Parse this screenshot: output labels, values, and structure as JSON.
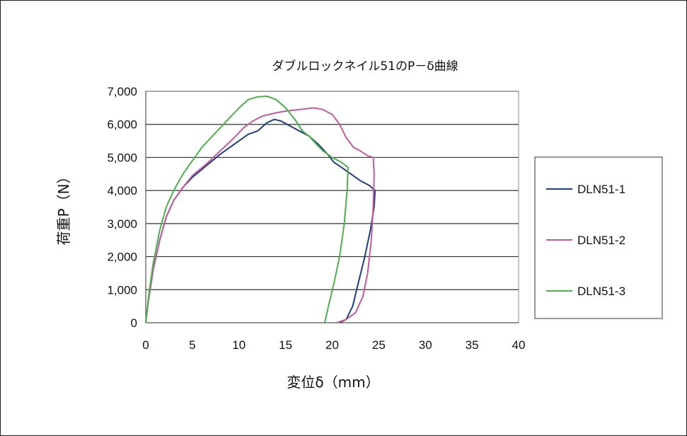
{
  "chart_data": {
    "type": "line",
    "title": "ダブルロックネイル51のP－δ曲線",
    "xlabel": "変位δ（mm）",
    "ylabel": "荷重P（N）",
    "xlim": [
      0,
      40
    ],
    "ylim": [
      0,
      7000
    ],
    "x_ticks": [
      0,
      5,
      10,
      15,
      20,
      25,
      30,
      35,
      40
    ],
    "y_ticks": [
      0,
      1000,
      2000,
      3000,
      4000,
      5000,
      6000,
      7000
    ],
    "y_tick_labels": [
      "0",
      "1,000",
      "2,000",
      "3,000",
      "4,000",
      "5,000",
      "6,000",
      "7,000"
    ],
    "grid": "horizontal",
    "legend_position": "right",
    "series": [
      {
        "name": "DLN51-1",
        "color": "#1f3f7a",
        "points": [
          [
            0,
            0
          ],
          [
            0.3,
            700
          ],
          [
            0.8,
            1600
          ],
          [
            1.5,
            2500
          ],
          [
            2.2,
            3200
          ],
          [
            3,
            3700
          ],
          [
            4,
            4100
          ],
          [
            5,
            4400
          ],
          [
            6.5,
            4750
          ],
          [
            8,
            5100
          ],
          [
            9.5,
            5400
          ],
          [
            11,
            5700
          ],
          [
            12,
            5800
          ],
          [
            13,
            6050
          ],
          [
            13.8,
            6150
          ],
          [
            14.5,
            6100
          ],
          [
            15.5,
            5950
          ],
          [
            16.5,
            5800
          ],
          [
            17.5,
            5650
          ],
          [
            18.5,
            5400
          ],
          [
            19.5,
            5100
          ],
          [
            20.2,
            4850
          ],
          [
            21,
            4700
          ],
          [
            22,
            4500
          ],
          [
            23,
            4300
          ],
          [
            24,
            4150
          ],
          [
            24.6,
            4000
          ],
          [
            24.5,
            3500
          ],
          [
            24.1,
            2800
          ],
          [
            23.5,
            2000
          ],
          [
            22.8,
            1200
          ],
          [
            22.2,
            500
          ],
          [
            21.5,
            100
          ],
          [
            20.8,
            0
          ]
        ]
      },
      {
        "name": "DLN51-2",
        "color": "#c05a9e",
        "points": [
          [
            0,
            0
          ],
          [
            0.3,
            700
          ],
          [
            0.8,
            1600
          ],
          [
            1.5,
            2500
          ],
          [
            2.2,
            3200
          ],
          [
            3,
            3700
          ],
          [
            4,
            4100
          ],
          [
            5,
            4450
          ],
          [
            6.5,
            4800
          ],
          [
            8,
            5200
          ],
          [
            9.5,
            5600
          ],
          [
            10.5,
            5900
          ],
          [
            11.5,
            6100
          ],
          [
            12.5,
            6250
          ],
          [
            14,
            6350
          ],
          [
            15,
            6400
          ],
          [
            16.5,
            6450
          ],
          [
            18,
            6500
          ],
          [
            19,
            6450
          ],
          [
            20,
            6300
          ],
          [
            20.8,
            6000
          ],
          [
            21.5,
            5600
          ],
          [
            22.3,
            5300
          ],
          [
            23,
            5200
          ],
          [
            23.8,
            5050
          ],
          [
            24.4,
            5000
          ],
          [
            24.5,
            4500
          ],
          [
            24.4,
            3500
          ],
          [
            24.2,
            2500
          ],
          [
            23.8,
            1500
          ],
          [
            23.3,
            800
          ],
          [
            22.5,
            300
          ],
          [
            21.5,
            100
          ],
          [
            20.5,
            0
          ]
        ]
      },
      {
        "name": "DLN51-3",
        "color": "#4cb04c",
        "points": [
          [
            0,
            0
          ],
          [
            0.3,
            800
          ],
          [
            0.8,
            1800
          ],
          [
            1.5,
            2800
          ],
          [
            2.2,
            3500
          ],
          [
            3,
            4000
          ],
          [
            4,
            4500
          ],
          [
            5,
            4900
          ],
          [
            6,
            5300
          ],
          [
            7,
            5600
          ],
          [
            8,
            5900
          ],
          [
            9,
            6200
          ],
          [
            10,
            6500
          ],
          [
            11,
            6750
          ],
          [
            12,
            6830
          ],
          [
            13,
            6850
          ],
          [
            14,
            6750
          ],
          [
            15,
            6500
          ],
          [
            16,
            6150
          ],
          [
            16.8,
            5800
          ],
          [
            17.5,
            5650
          ],
          [
            18.3,
            5400
          ],
          [
            19,
            5200
          ],
          [
            20,
            5000
          ],
          [
            21,
            4850
          ],
          [
            21.7,
            4700
          ],
          [
            21.6,
            4000
          ],
          [
            21.3,
            3000
          ],
          [
            20.8,
            2000
          ],
          [
            20.2,
            1200
          ],
          [
            19.6,
            500
          ],
          [
            19.2,
            0
          ]
        ]
      }
    ]
  }
}
